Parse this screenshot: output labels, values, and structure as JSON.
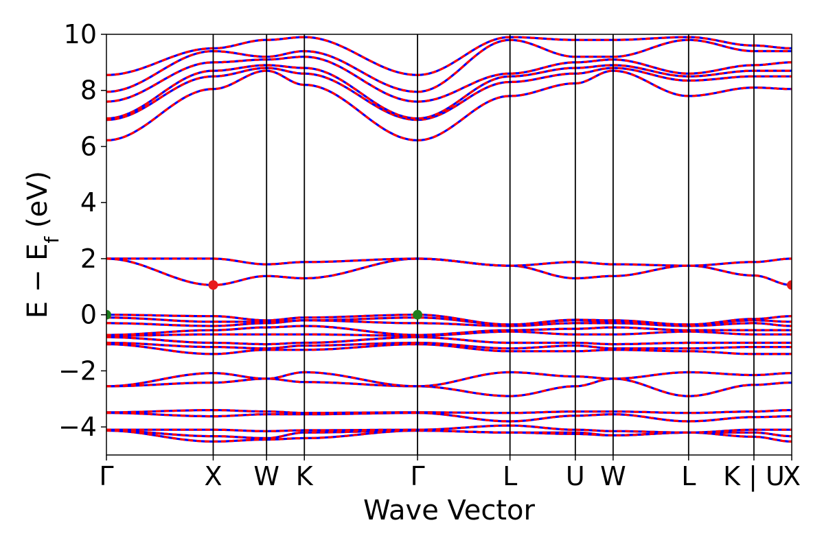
{
  "chart_data": {
    "type": "line",
    "title": "",
    "xlabel": "Wave Vector",
    "ylabel_parts": {
      "main": "E − E",
      "sub": "f",
      "unit": " (eV)"
    },
    "ylim": [
      -5,
      10
    ],
    "y_ticks": [
      -4,
      -2,
      0,
      2,
      4,
      6,
      8,
      10
    ],
    "y_tick_labels": [
      "−4",
      "−2",
      "0",
      "2",
      "4",
      "6",
      "8",
      "10"
    ],
    "grid": false,
    "legend": "none",
    "kpath": [
      {
        "label": "Γ",
        "x": 0.0
      },
      {
        "label": "X",
        "x": 1.0
      },
      {
        "label": "W",
        "x": 1.5
      },
      {
        "label": "K",
        "x": 1.854
      },
      {
        "label": "Γ",
        "x": 2.914
      },
      {
        "label": "L",
        "x": 3.78
      },
      {
        "label": "U",
        "x": 4.392
      },
      {
        "label": "W",
        "x": 4.746
      },
      {
        "label": "L",
        "x": 5.453
      },
      {
        "label": "K | U",
        "x": 6.065
      },
      {
        "label": "X",
        "x": 6.419
      }
    ],
    "bands": [
      [
        -4.13,
        -4.52,
        -4.45,
        -4.4,
        -4.13,
        -4.2,
        -4.25,
        -4.3,
        -4.2,
        -4.35,
        -4.52
      ],
      [
        -4.13,
        -4.33,
        -4.4,
        -4.2,
        -4.13,
        -4.2,
        -4.2,
        -4.3,
        -4.2,
        -4.2,
        -4.33
      ],
      [
        -4.1,
        -4.1,
        -4.15,
        -4.12,
        -4.1,
        -3.95,
        -4.1,
        -4.15,
        -4.2,
        -4.1,
        -4.1
      ],
      [
        -3.5,
        -3.62,
        -3.55,
        -3.55,
        -3.5,
        -3.8,
        -3.6,
        -3.55,
        -3.8,
        -3.65,
        -3.62
      ],
      [
        -3.48,
        -3.4,
        -3.45,
        -3.5,
        -3.48,
        -3.5,
        -3.45,
        -3.45,
        -3.5,
        -3.45,
        -3.4
      ],
      [
        -2.55,
        -2.42,
        -2.28,
        -2.4,
        -2.55,
        -2.9,
        -2.55,
        -2.28,
        -2.9,
        -2.5,
        -2.42
      ],
      [
        -2.55,
        -2.08,
        -2.28,
        -2.05,
        -2.55,
        -2.05,
        -2.2,
        -2.28,
        -2.05,
        -2.15,
        -2.08
      ],
      [
        -1.05,
        -1.4,
        -1.25,
        -1.25,
        -1.05,
        -1.3,
        -1.3,
        -1.25,
        -1.3,
        -1.4,
        -1.4
      ],
      [
        -1.0,
        -1.15,
        -1.2,
        -1.1,
        -1.0,
        -1.2,
        -1.1,
        -1.2,
        -1.2,
        -1.15,
        -1.15
      ],
      [
        -0.8,
        -1.0,
        -1.05,
        -1.0,
        -0.8,
        -1.0,
        -1.0,
        -1.05,
        -1.0,
        -1.0,
        -1.0
      ],
      [
        -0.75,
        -0.7,
        -0.7,
        -0.7,
        -0.75,
        -0.6,
        -0.7,
        -0.7,
        -0.6,
        -0.7,
        -0.7
      ],
      [
        -0.72,
        -0.55,
        -0.45,
        -0.4,
        -0.72,
        -0.55,
        -0.5,
        -0.45,
        -0.55,
        -0.55,
        -0.55
      ],
      [
        -0.3,
        -0.4,
        -0.3,
        -0.2,
        -0.3,
        -0.4,
        -0.3,
        -0.3,
        -0.4,
        -0.3,
        -0.4
      ],
      [
        -0.1,
        -0.25,
        -0.25,
        -0.2,
        -0.1,
        -0.35,
        -0.2,
        -0.25,
        -0.35,
        -0.2,
        -0.25
      ],
      [
        0.0,
        -0.05,
        -0.2,
        -0.1,
        0.0,
        -0.35,
        -0.18,
        -0.2,
        -0.35,
        -0.15,
        -0.05
      ],
      [
        2.0,
        1.06,
        1.38,
        1.3,
        2.0,
        1.75,
        1.3,
        1.38,
        1.75,
        1.4,
        1.06
      ],
      [
        2.0,
        2.0,
        1.8,
        1.88,
        2.0,
        1.75,
        1.88,
        1.8,
        1.75,
        1.88,
        2.0
      ],
      [
        6.22,
        8.05,
        8.7,
        8.2,
        6.22,
        7.8,
        8.25,
        8.7,
        7.8,
        8.1,
        8.05
      ],
      [
        6.95,
        8.5,
        8.8,
        8.6,
        6.95,
        8.3,
        8.6,
        8.8,
        8.35,
        8.5,
        8.5
      ],
      [
        7.0,
        8.7,
        8.9,
        8.8,
        7.0,
        8.5,
        8.8,
        8.9,
        8.5,
        8.7,
        8.7
      ],
      [
        7.6,
        9.0,
        9.1,
        9.2,
        7.6,
        8.6,
        9.0,
        9.1,
        8.6,
        8.9,
        9.0
      ],
      [
        7.95,
        9.4,
        9.2,
        9.4,
        7.95,
        9.8,
        9.2,
        9.2,
        9.8,
        9.4,
        9.4
      ],
      [
        8.55,
        9.5,
        9.8,
        9.9,
        8.55,
        9.9,
        9.8,
        9.8,
        9.9,
        9.6,
        9.5
      ]
    ],
    "markers": [
      {
        "kind": "vbm",
        "x": 0.0,
        "y": 0.0,
        "color": "#1e7d1e"
      },
      {
        "kind": "vbm",
        "x": 2.914,
        "y": 0.0,
        "color": "#1e7d1e"
      },
      {
        "kind": "cbm",
        "x": 1.0,
        "y": 1.06,
        "color": "#e8191a"
      },
      {
        "kind": "cbm",
        "x": 6.419,
        "y": 1.06,
        "color": "#e8191a"
      }
    ],
    "colors": {
      "spin_up": "#0000ff",
      "spin_down": "#ff0000",
      "kline": "#000000"
    }
  }
}
